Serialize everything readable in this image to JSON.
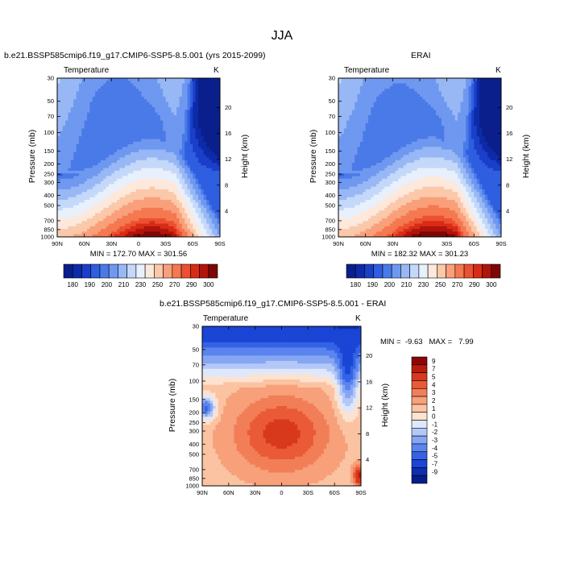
{
  "figure_title": "JJA",
  "colors": {
    "temp_scale": [
      "#0a1f8c",
      "#0d2aa8",
      "#1a3fc8",
      "#2f5ee0",
      "#4a7ae8",
      "#6f98f0",
      "#98b8f5",
      "#c4d8fa",
      "#e8f0fc",
      "#fde8dc",
      "#fbc8aa",
      "#f9a07a",
      "#f47850",
      "#ec5030",
      "#d82c16",
      "#b0140a",
      "#7d0606"
    ],
    "diff_scale": [
      "#071d8a",
      "#0d2fb0",
      "#1a45d5",
      "#3563e6",
      "#5a84ee",
      "#86a6f3",
      "#b4c8f7",
      "#dfe8fb",
      "#fde2d0",
      "#fbc3a2",
      "#f7a07a",
      "#f27e58",
      "#ea5a36",
      "#d8381c",
      "#b81c0a",
      "#8c0606"
    ]
  },
  "chart_data": [
    {
      "type": "heatmap",
      "title": "b.e21.BSSP585cmip6.f19_g17.CMIP6-SSP5-8.5.001 (yrs 2015-2099)",
      "left_title": "Temperature",
      "right_title": "K",
      "xlabel": "",
      "ylabel": "Pressure (mb)",
      "ylabel_right": "Height (km)",
      "x_ticks": [
        "90N",
        "60N",
        "30N",
        "0",
        "30S",
        "60S",
        "90S"
      ],
      "y_ticks": [
        "30",
        "50",
        "70",
        "100",
        "150",
        "200",
        "250",
        "300",
        "400",
        "500",
        "700",
        "850",
        "1000"
      ],
      "y_right_ticks": [
        "20",
        "16",
        "12",
        "8",
        "4"
      ],
      "min": 172.7,
      "max": 301.56,
      "stats_text": "MIN = 172.70   MAX = 301.56",
      "colorbar_labels": [
        "180",
        "190",
        "200",
        "210",
        "230",
        "250",
        "270",
        "290",
        "300"
      ]
    },
    {
      "type": "heatmap",
      "title": "ERAI",
      "left_title": "Temperature",
      "right_title": "K",
      "xlabel": "",
      "ylabel": "Pressure (mb)",
      "ylabel_right": "Height (km)",
      "x_ticks": [
        "90N",
        "60N",
        "30N",
        "0",
        "30S",
        "60S",
        "90S"
      ],
      "y_ticks": [
        "30",
        "50",
        "70",
        "100",
        "150",
        "200",
        "250",
        "300",
        "400",
        "500",
        "700",
        "850",
        "1000"
      ],
      "y_right_ticks": [
        "20",
        "16",
        "12",
        "8",
        "4"
      ],
      "min": 182.32,
      "max": 301.23,
      "stats_text": "MIN = 182.32   MAX = 301.23",
      "colorbar_labels": [
        "180",
        "190",
        "200",
        "210",
        "230",
        "250",
        "270",
        "290",
        "300"
      ]
    },
    {
      "type": "heatmap",
      "title": "b.e21.BSSP585cmip6.f19_g17.CMIP6-SSP5-8.5.001 - ERAI",
      "left_title": "Temperature",
      "right_title": "K",
      "xlabel": "",
      "ylabel": "Pressure (mb)",
      "ylabel_right": "Height (km)",
      "x_ticks": [
        "90N",
        "60N",
        "30N",
        "0",
        "30S",
        "60S",
        "90S"
      ],
      "y_ticks": [
        "30",
        "50",
        "70",
        "100",
        "150",
        "200",
        "250",
        "300",
        "400",
        "500",
        "700",
        "850",
        "1000"
      ],
      "y_right_ticks": [
        "20",
        "16",
        "12",
        "8",
        "4"
      ],
      "min": -9.63,
      "max": 7.99,
      "stats_text": "MIN =  -9.63   MAX =   7.99",
      "colorbar_labels": [
        "9",
        "7",
        "5",
        "4",
        "3",
        "2",
        "1",
        "0",
        "-1",
        "-2",
        "-3",
        "-4",
        "-5",
        "-7",
        "-9"
      ]
    }
  ]
}
